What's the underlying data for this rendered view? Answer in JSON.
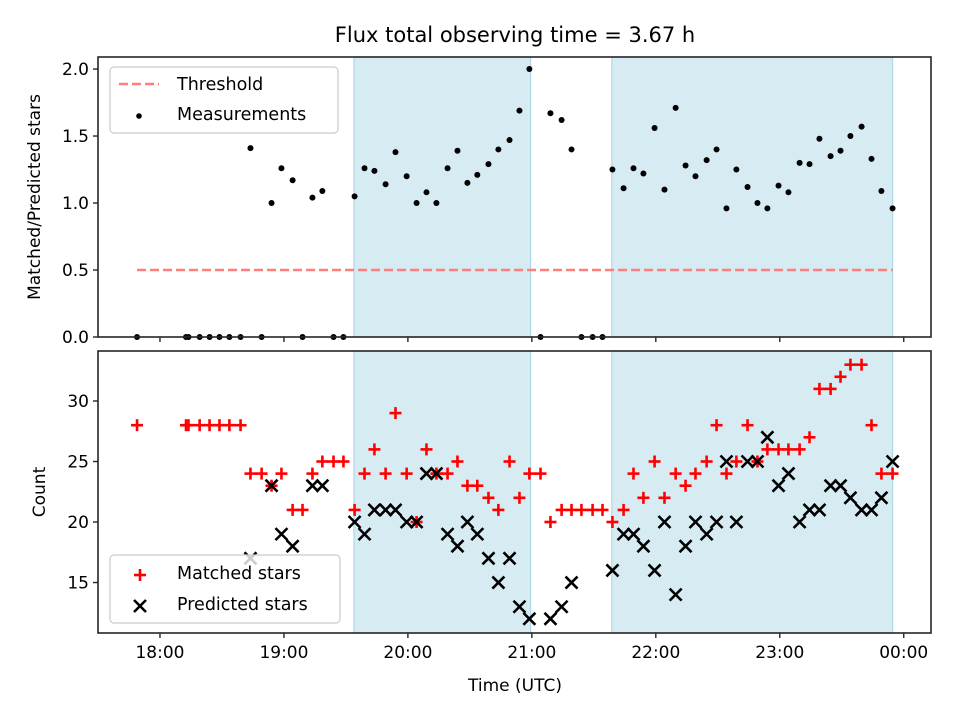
{
  "chart_data": {
    "title": "Flux total observing time = 3.67 h",
    "xlabel": "Time (UTC)",
    "x_unit": "hours (UTC, decimal; 24 = 00:00 next day)",
    "xlim": [
      17.5,
      24.22
    ],
    "x_ticks": [
      18,
      19,
      20,
      21,
      22,
      23,
      24
    ],
    "x_tick_labels": [
      "18:00",
      "19:00",
      "20:00",
      "21:00",
      "22:00",
      "23:00",
      "00:00"
    ],
    "x": [
      17.815,
      18.21,
      18.23,
      18.32,
      18.4,
      18.48,
      18.56,
      18.65,
      18.73,
      18.82,
      18.9,
      18.98,
      19.07,
      19.15,
      19.23,
      19.31,
      19.4,
      19.48,
      19.57,
      19.65,
      19.73,
      19.82,
      19.9,
      19.99,
      20.07,
      20.15,
      20.23,
      20.32,
      20.4,
      20.48,
      20.56,
      20.65,
      20.73,
      20.82,
      20.9,
      20.98,
      21.07,
      21.15,
      21.24,
      21.32,
      21.4,
      21.49,
      21.57,
      21.65,
      21.74,
      21.82,
      21.9,
      21.99,
      22.07,
      22.16,
      22.24,
      22.32,
      22.41,
      22.49,
      22.57,
      22.65,
      22.74,
      22.82,
      22.9,
      22.99,
      23.07,
      23.16,
      23.24,
      23.32,
      23.41,
      23.49,
      23.57,
      23.66,
      23.74,
      23.82,
      23.91
    ],
    "shaded_regions": [
      {
        "start": 19.565,
        "end": 20.99
      },
      {
        "start": 21.645,
        "end": 23.91
      }
    ],
    "shade_color": "#add8e6",
    "panels": [
      {
        "name": "ratio",
        "type": "scatter",
        "ylabel": "Matched/Predicted stars",
        "ylim": [
          0,
          2.09
        ],
        "y_ticks": [
          0.0,
          0.5,
          1.0,
          1.5,
          2.0
        ],
        "y_tick_labels": [
          "0.0",
          "0.5",
          "1.0",
          "1.5",
          "2.0"
        ],
        "threshold": {
          "label": "Threshold",
          "value": 0.5,
          "x_range": [
            17.815,
            23.91
          ],
          "color": "#ff7f7f",
          "style": "dashed"
        },
        "series": [
          {
            "name": "Measurements",
            "color": "#000000",
            "marker": "dot",
            "values": [
              0,
              0,
              0,
              0,
              0,
              0,
              0,
              0,
              1.41,
              0,
              1.0,
              1.26,
              1.17,
              0,
              1.04,
              1.09,
              0,
              0,
              1.05,
              1.26,
              1.24,
              1.14,
              1.38,
              1.2,
              1.0,
              1.08,
              1.0,
              1.26,
              1.39,
              1.15,
              1.21,
              1.29,
              1.4,
              1.47,
              1.69,
              2.0,
              0,
              1.67,
              1.62,
              1.4,
              0,
              0,
              0,
              1.25,
              1.11,
              1.26,
              1.22,
              1.56,
              1.1,
              1.71,
              1.28,
              1.2,
              1.32,
              1.4,
              0.96,
              1.25,
              1.12,
              1.0,
              0.96,
              1.13,
              1.08,
              1.3,
              1.29,
              1.48,
              1.35,
              1.39,
              1.5,
              1.57,
              1.33,
              1.09,
              0.96
            ]
          }
        ],
        "legend": {
          "position": "upper-left",
          "entries": [
            "Threshold",
            "Measurements"
          ]
        }
      },
      {
        "name": "counts",
        "type": "scatter",
        "ylabel": "Count",
        "ylim": [
          10.83,
          34.13
        ],
        "y_ticks": [
          15,
          20,
          25,
          30
        ],
        "y_tick_labels": [
          "15",
          "20",
          "25",
          "30"
        ],
        "series": [
          {
            "name": "Matched stars",
            "color": "#ff0000",
            "marker": "plus",
            "values": [
              28,
              28,
              28,
              28,
              28,
              28,
              28,
              28,
              24,
              24,
              23,
              24,
              21,
              21,
              24,
              25,
              25,
              25,
              21,
              24,
              26,
              24,
              29,
              24,
              20,
              26,
              24,
              24,
              25,
              23,
              23,
              22,
              21,
              25,
              22,
              24,
              24,
              20,
              21,
              21,
              21,
              21,
              21,
              20,
              21,
              24,
              22,
              25,
              22,
              24,
              23,
              24,
              25,
              28,
              24,
              25,
              28,
              25,
              26,
              26,
              26,
              26,
              27,
              31,
              31,
              32,
              33,
              33,
              28,
              24,
              24
            ]
          },
          {
            "name": "Predicted stars",
            "color": "#000000",
            "marker": "x",
            "values": [
              null,
              null,
              null,
              null,
              null,
              null,
              null,
              null,
              17,
              null,
              23,
              19,
              18,
              null,
              23,
              23,
              null,
              null,
              20,
              19,
              21,
              21,
              21,
              20,
              20,
              24,
              24,
              19,
              18,
              20,
              19,
              17,
              15,
              17,
              13,
              12,
              null,
              12,
              13,
              15,
              null,
              null,
              null,
              16,
              19,
              19,
              18,
              16,
              20,
              14,
              18,
              20,
              19,
              20,
              25,
              20,
              25,
              25,
              27,
              23,
              24,
              20,
              21,
              21,
              23,
              23,
              22,
              21,
              21,
              22,
              25
            ]
          }
        ],
        "legend": {
          "position": "lower-left",
          "entries": [
            "Matched stars",
            "Predicted stars"
          ]
        }
      }
    ]
  }
}
